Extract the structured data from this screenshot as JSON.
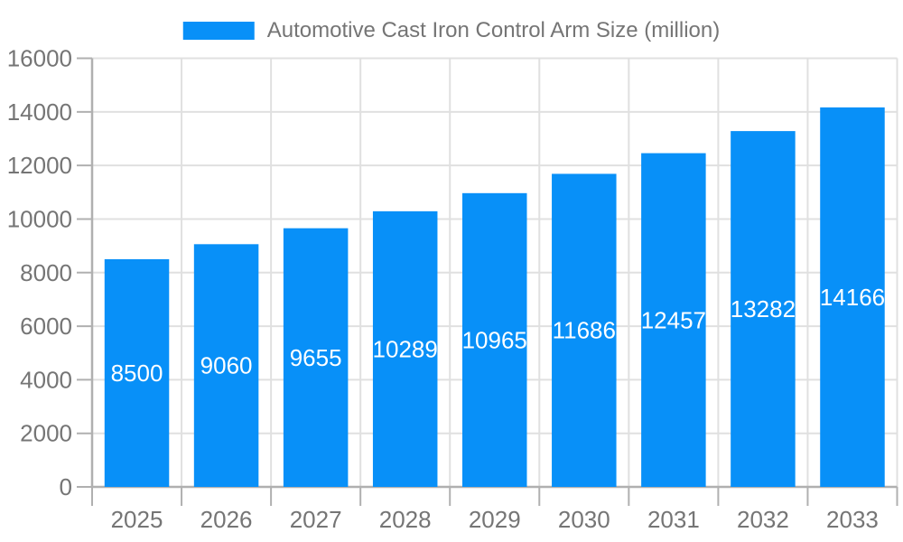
{
  "legend": {
    "label": "Automotive Cast Iron Control Arm Size (million)"
  },
  "chart_data": {
    "type": "bar",
    "title": "Automotive Cast Iron Control Arm Size (million)",
    "series": [
      {
        "name": "Automotive Cast Iron Control Arm Size (million)",
        "values": [
          8500,
          9060,
          9655,
          10289,
          10965,
          11686,
          12457,
          13282,
          14166
        ]
      }
    ],
    "categories": [
      "2025",
      "2026",
      "2027",
      "2028",
      "2029",
      "2030",
      "2031",
      "2032",
      "2033"
    ],
    "values": [
      8500,
      9060,
      9655,
      10289,
      10965,
      11686,
      12457,
      13282,
      14166
    ],
    "value_labels": [
      "8500",
      "9060",
      "9655",
      "10289",
      "10965",
      "11686",
      "12457",
      "13282",
      "14166"
    ],
    "yticks": [
      0,
      2000,
      4000,
      6000,
      8000,
      10000,
      12000,
      14000,
      16000
    ],
    "ylim": [
      0,
      16000
    ],
    "xlabel": "",
    "ylabel": "",
    "grid": true,
    "legend_position": "top-center",
    "value_label_position": "center-of-bar",
    "colors": {
      "bar": "#0890F8",
      "bar_label": "#FFFFFF",
      "axis": "#B0B0B0",
      "grid": "#E0E0E0",
      "tick_text": "#757575",
      "legend_text": "#757575",
      "background": "#FFFFFF"
    }
  }
}
